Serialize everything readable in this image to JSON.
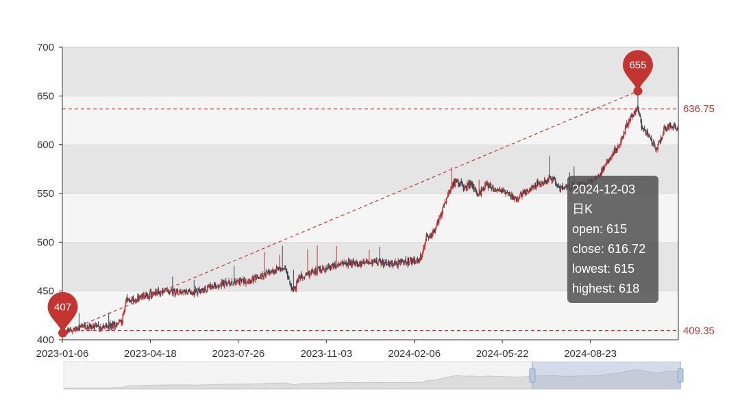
{
  "chart_data": {
    "type": "candlestick",
    "ylim": [
      400,
      700
    ],
    "y_ticks": [
      "400",
      "450",
      "500",
      "550",
      "600",
      "650",
      "700"
    ],
    "x_tick_labels": [
      "2023-01-06",
      "2023-04-18",
      "2023-07-26",
      "2023-11-03",
      "2024-02-06",
      "2024-05-22",
      "2024-08-23"
    ],
    "grid": "horizontal bands",
    "up_color": "#c23531",
    "down_color": "#2f4554",
    "series": [
      {
        "points": [
          [
            0,
            407
          ],
          [
            30,
            414
          ],
          [
            60,
            412
          ],
          [
            80,
            420
          ],
          [
            85,
            440
          ],
          [
            100,
            442
          ],
          [
            120,
            447
          ],
          [
            140,
            450
          ],
          [
            160,
            450
          ],
          [
            180,
            448
          ],
          [
            200,
            455
          ],
          [
            220,
            458
          ],
          [
            240,
            460
          ],
          [
            260,
            462
          ],
          [
            280,
            470
          ],
          [
            300,
            475
          ],
          [
            310,
            450
          ],
          [
            320,
            465
          ],
          [
            340,
            470
          ],
          [
            360,
            475
          ],
          [
            380,
            480
          ],
          [
            400,
            478
          ],
          [
            420,
            480
          ],
          [
            440,
            478
          ],
          [
            460,
            480
          ],
          [
            480,
            480
          ],
          [
            485,
            490
          ],
          [
            490,
            505
          ],
          [
            500,
            510
          ],
          [
            510,
            530
          ],
          [
            520,
            550
          ],
          [
            530,
            565
          ],
          [
            540,
            555
          ],
          [
            550,
            560
          ],
          [
            560,
            548
          ],
          [
            570,
            560
          ],
          [
            580,
            555
          ],
          [
            600,
            550
          ],
          [
            610,
            545
          ],
          [
            620,
            550
          ],
          [
            640,
            560
          ],
          [
            660,
            565
          ],
          [
            670,
            555
          ],
          [
            680,
            555
          ],
          [
            700,
            560
          ],
          [
            710,
            562
          ],
          [
            720,
            565
          ],
          [
            740,
            590
          ],
          [
            750,
            600
          ],
          [
            760,
            620
          ],
          [
            770,
            633
          ],
          [
            775,
            637
          ],
          [
            780,
            620
          ],
          [
            790,
            608
          ],
          [
            800,
            595
          ],
          [
            810,
            615
          ],
          [
            820,
            620
          ],
          [
            825,
            616.72
          ]
        ]
      }
    ],
    "mark_points": [
      {
        "label": "407",
        "value": 407,
        "index": 0
      },
      {
        "label": "655",
        "value": 655,
        "index": 775
      }
    ],
    "mark_lines": [
      {
        "label": "636.75",
        "value": 636.75
      },
      {
        "label": "409.35",
        "value": 409.35
      }
    ],
    "trend_line": {
      "from": [
        0,
        407
      ],
      "to": [
        775,
        655
      ]
    },
    "datazoom": {
      "start": 0.76,
      "end": 1.0
    }
  },
  "tooltip": {
    "date": "2024-12-03",
    "series_name": "日K",
    "open": "open: 615",
    "close": "close: 616.72",
    "lowest": "lowest: 615",
    "highest": "highest: 618"
  }
}
